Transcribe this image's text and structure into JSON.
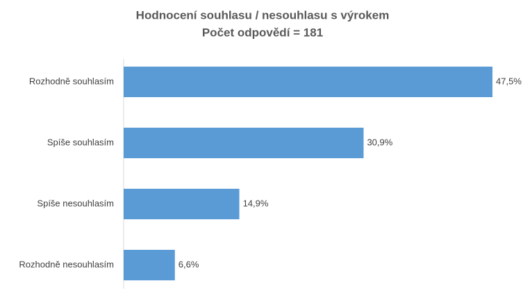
{
  "chart_data": {
    "type": "barh",
    "title": "Hodnocení souhlasu / nesouhlasu s výrokem",
    "subtitle": "Počet odpovědí = 181",
    "categories": [
      "Rozhodně souhlasím",
      "Spíše souhlasím",
      "Spíše nesouhlasím",
      "Rozhodně nesouhlasím"
    ],
    "values": [
      47.5,
      30.9,
      14.9,
      6.6
    ],
    "value_labels": [
      "47,5%",
      "30,9%",
      "14,9%",
      "6,6%"
    ],
    "color": "#5b9bd5",
    "xlim": [
      0,
      50
    ]
  }
}
